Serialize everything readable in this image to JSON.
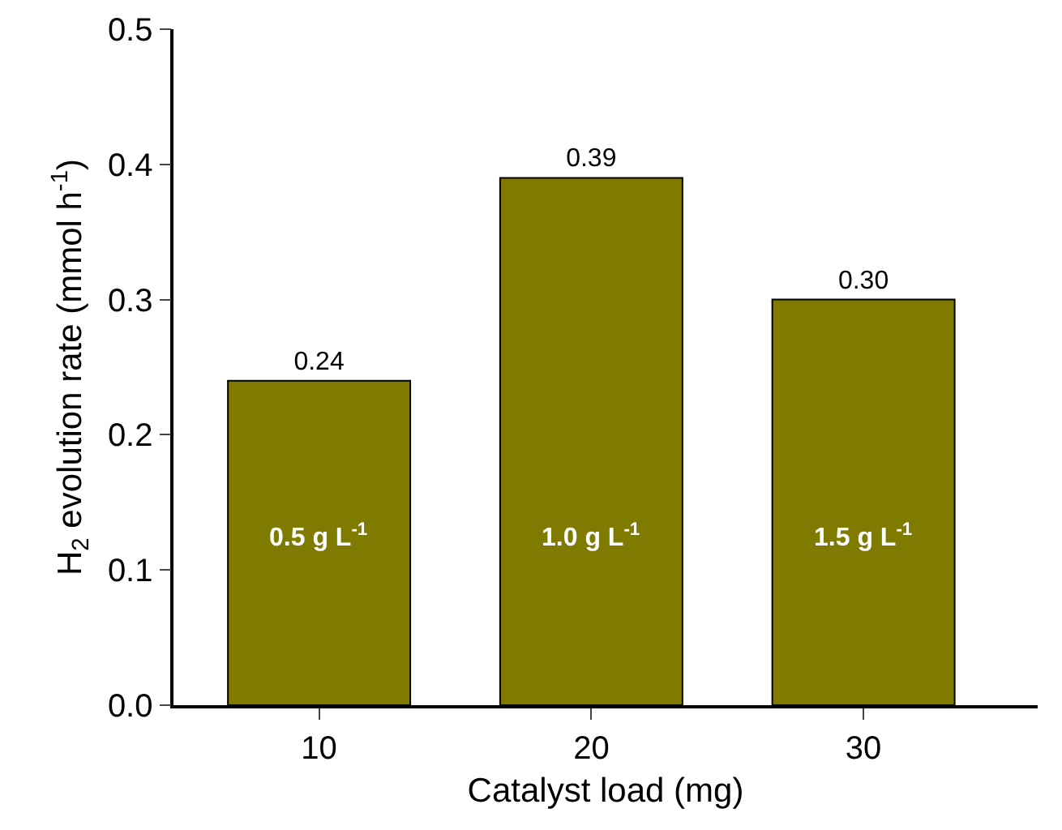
{
  "chart_data": {
    "type": "bar",
    "xlabel": "Catalyst load (mg)",
    "ylabel": "H$_{2}$ evolution rate (mmol h$^{-1}$)",
    "categories": [
      "10",
      "20",
      "30"
    ],
    "values": [
      0.24,
      0.39,
      0.3
    ],
    "value_labels": [
      "0.24",
      "0.39",
      "0.30"
    ],
    "color": "#7f7a00",
    "ylim": [
      0,
      0.5
    ],
    "yticks": [
      {
        "value": 0,
        "label": "0.0"
      },
      {
        "value": 0.1,
        "label": "0.1"
      },
      {
        "value": 0.2,
        "label": "0.2"
      },
      {
        "value": 0.3,
        "label": "0.3"
      },
      {
        "value": 0.4,
        "label": "0.4"
      },
      {
        "value": 0.5,
        "label": "0.5"
      }
    ],
    "annotations": [
      "0.5 g L$^{-1}$",
      "1.0 g L$^{-1}$",
      "1.5 g L$^{-1}$"
    ],
    "grid": false,
    "legend": false
  }
}
